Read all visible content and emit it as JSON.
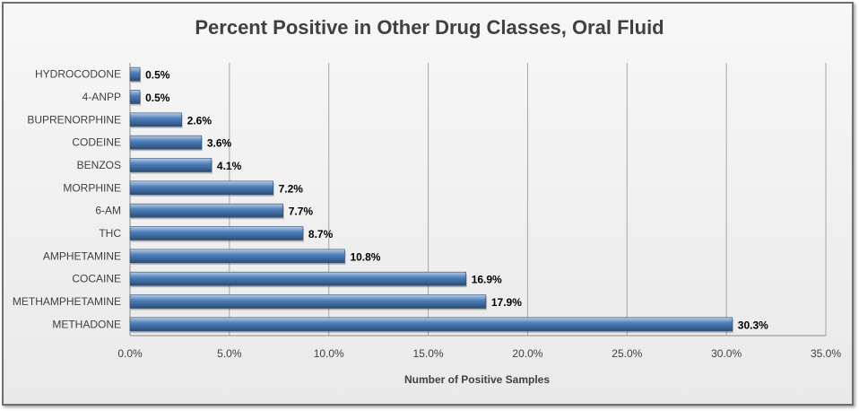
{
  "chart_data": {
    "type": "bar",
    "orientation": "horizontal",
    "title": "Percent Positive in Other Drug Classes, Oral Fluid",
    "xlabel": "Number of Positive Samples",
    "ylabel": "",
    "categories": [
      "HYDROCODONE",
      "4-ANPP",
      "BUPRENORPHINE",
      "CODEINE",
      "BENZOS",
      "MORPHINE",
      "6-AM",
      "THC",
      "AMPHETAMINE",
      "COCAINE",
      "METHAMPHETAMINE",
      "METHADONE"
    ],
    "values": [
      0.5,
      0.5,
      2.6,
      3.6,
      4.1,
      7.2,
      7.7,
      8.7,
      10.8,
      16.9,
      17.9,
      30.3
    ],
    "data_labels": [
      "0.5%",
      "0.5%",
      "2.6%",
      "3.6%",
      "4.1%",
      "7.2%",
      "7.7%",
      "8.7%",
      "10.8%",
      "16.9%",
      "17.9%",
      "30.3%"
    ],
    "xlim": [
      0,
      35
    ],
    "x_ticks": [
      0,
      5,
      10,
      15,
      20,
      25,
      30,
      35
    ],
    "x_tick_labels": [
      "0.0%",
      "5.0%",
      "10.0%",
      "15.0%",
      "20.0%",
      "25.0%",
      "30.0%",
      "35.0%"
    ],
    "grid": true,
    "legend": "none",
    "colors": {
      "bar": "#4f81bd",
      "bar_light": "#b9cde5",
      "bar_dark": "#2c4d75",
      "grid": "#a6a6a6",
      "background": "#eeeeee"
    }
  }
}
